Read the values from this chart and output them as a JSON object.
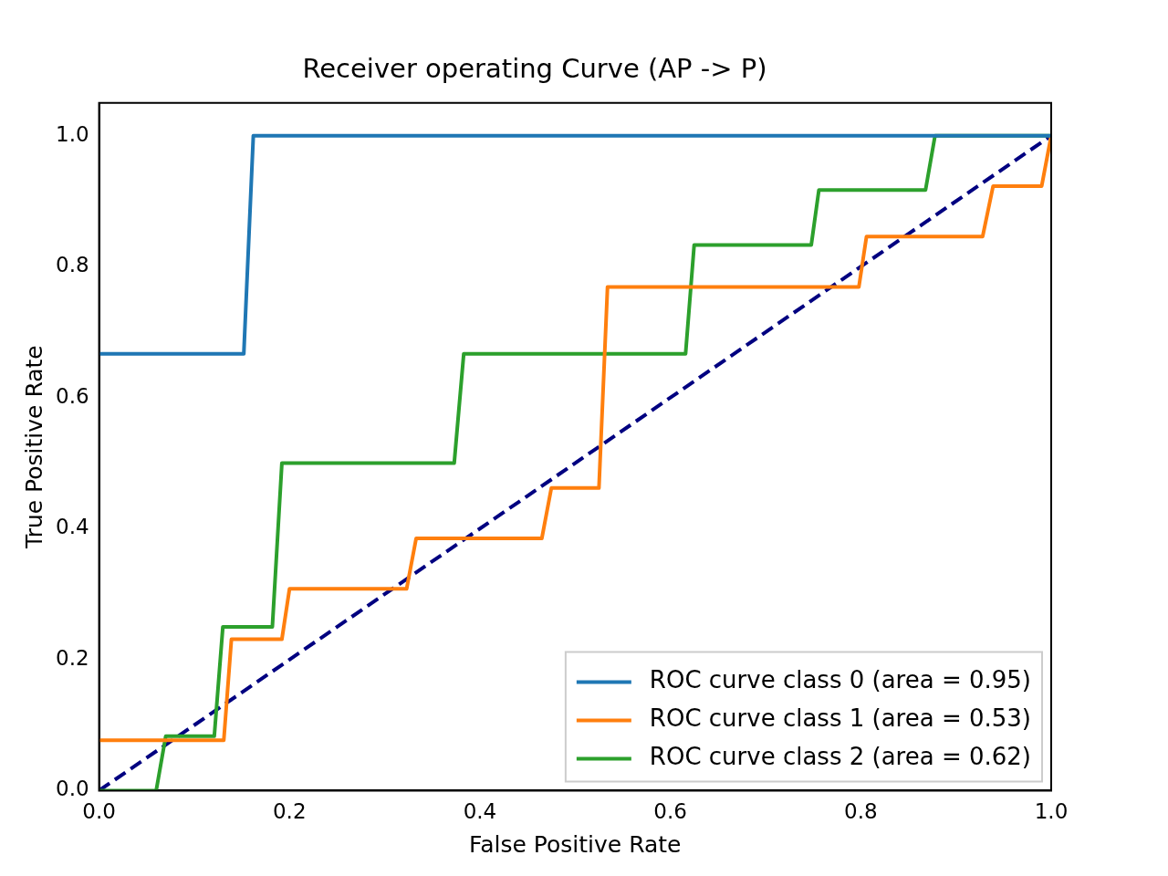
{
  "chart_data": {
    "type": "line",
    "title": "Receiver operating Curve (AP -> P)",
    "xlabel": "False Positive Rate",
    "ylabel": "True Positive Rate",
    "xlim": [
      0,
      1
    ],
    "ylim": [
      0,
      1.05
    ],
    "xticks": [
      {
        "value": 0,
        "label": "0.0"
      },
      0.2,
      0.4,
      0.6,
      0.8,
      {
        "value": 1,
        "label": "1.0"
      }
    ],
    "yticks": [
      {
        "value": 0,
        "label": "0.0"
      },
      0.2,
      0.4,
      0.6,
      0.8,
      {
        "value": 1,
        "label": "1.0"
      }
    ],
    "grid": false,
    "legend": "bottom right",
    "marker": "none",
    "series": [
      {
        "name": "ROC curve class 0 (area = 0.95)",
        "color": "#1f77b4",
        "x": [
          0,
          0.152,
          0.162,
          1
        ],
        "values": [
          0.667,
          0.667,
          1,
          1
        ]
      },
      {
        "name": "ROC curve class 1 (area = 0.53)",
        "color": "#ff7f0e",
        "x": [
          0,
          0.131,
          0.139,
          0.192,
          0.2,
          0.323,
          0.333,
          0.465,
          0.475,
          0.525,
          0.534,
          0.798,
          0.806,
          0.928,
          0.939,
          0.99,
          1
        ],
        "values": [
          0.077,
          0.077,
          0.231,
          0.231,
          0.308,
          0.308,
          0.385,
          0.385,
          0.462,
          0.462,
          0.769,
          0.769,
          0.846,
          0.846,
          0.923,
          0.923,
          1
        ]
      },
      {
        "name": "ROC curve class 2 (area = 0.62)",
        "color": "#2ca02c",
        "x": [
          0,
          0.06,
          0.07,
          0.121,
          0.13,
          0.182,
          0.192,
          0.373,
          0.383,
          0.616,
          0.625,
          0.748,
          0.756,
          0.868,
          0.878,
          1
        ],
        "values": [
          0,
          0,
          0.083,
          0.083,
          0.25,
          0.25,
          0.5,
          0.5,
          0.667,
          0.667,
          0.833,
          0.833,
          0.917,
          0.917,
          1,
          1
        ]
      },
      {
        "color": "#000080",
        "line_style": "dashed",
        "x": [
          0,
          1
        ],
        "values": [
          0,
          1
        ]
      }
    ]
  }
}
